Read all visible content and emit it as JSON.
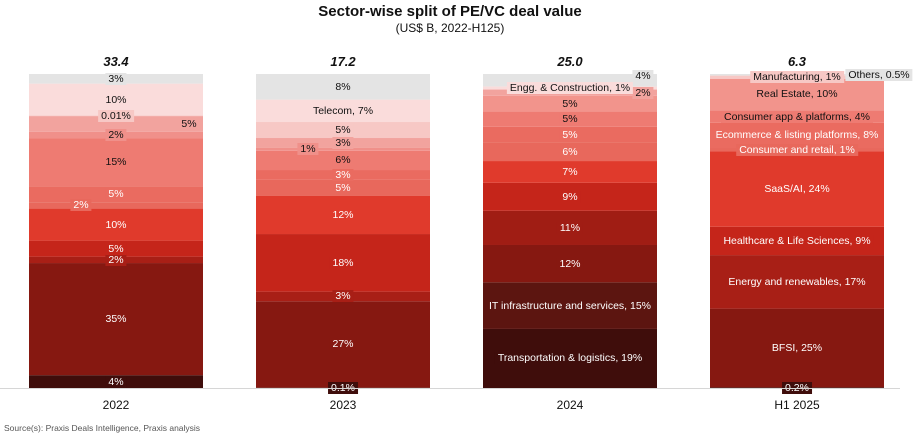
{
  "chart_data": {
    "type": "bar",
    "stacked": "100%",
    "title": "Sector-wise split of PE/VC deal value",
    "subtitle": "(US$ B, 2022-H125)",
    "source": "Source(s): Praxis Deals Intelligence, Praxis analysis",
    "categories": [
      "2022",
      "2023",
      "2024",
      "H1 2025"
    ],
    "totals": [
      "33.4",
      "17.2",
      "25.0",
      "6.3"
    ],
    "grid": false,
    "bars": [
      {
        "category": "2022",
        "segments": [
          {
            "value": 4,
            "label": "4%",
            "color": "#3f0d0b"
          },
          {
            "value": 35,
            "label": "35%",
            "color": "#861811"
          },
          {
            "value": 2,
            "label": "2%",
            "color": "#a81f16"
          },
          {
            "value": 5,
            "label": "5%",
            "color": "#c5251a"
          },
          {
            "value": 10,
            "label": "10%",
            "color": "#e03a2c"
          },
          {
            "value": 2,
            "label": "2%",
            "color": "#e8685c",
            "callout": "left"
          },
          {
            "value": 5,
            "label": "5%",
            "color": "#ea6b60"
          },
          {
            "value": 15,
            "label": "15%",
            "color": "#ee7b72"
          },
          {
            "value": 2,
            "label": "2%",
            "color": "#f0908a"
          },
          {
            "value": 5,
            "label": "5%",
            "color": "#f2a39e",
            "callout": "right"
          },
          {
            "value": 0.01,
            "label": "0.01%",
            "color": "#f7c8c5"
          },
          {
            "value": 10,
            "label": "10%",
            "color": "#fadcdb"
          },
          {
            "value": 3,
            "label": "3%",
            "color": "#e4e4e4"
          }
        ]
      },
      {
        "category": "2023",
        "segments": [
          {
            "value": 0.1,
            "label": "0.1%",
            "color": "#3f0d0b"
          },
          {
            "value": 27,
            "label": "27%",
            "color": "#861811"
          },
          {
            "value": 3,
            "label": "3%",
            "color": "#a81f16"
          },
          {
            "value": 18,
            "label": "18%",
            "color": "#c5251a"
          },
          {
            "value": 12,
            "label": "12%",
            "color": "#e03a2c"
          },
          {
            "value": 5,
            "label": "5%",
            "color": "#e8685c"
          },
          {
            "value": 3,
            "label": "3%",
            "color": "#ea6b60"
          },
          {
            "value": 6,
            "label": "6%",
            "color": "#ee7b72"
          },
          {
            "value": 1,
            "label": "1%",
            "color": "#f0908a",
            "callout": "left"
          },
          {
            "value": 3,
            "label": "3%",
            "color": "#f2a39e"
          },
          {
            "value": 5,
            "label": "5%",
            "color": "#f7c8c5"
          },
          {
            "value": 7,
            "label": "Telecom, 7%",
            "color": "#fadcdb"
          },
          {
            "value": 8,
            "label": "8%",
            "color": "#e4e4e4"
          }
        ]
      },
      {
        "category": "2024",
        "segments": [
          {
            "value": 19,
            "label": "Transportation & logistics, 19%",
            "color": "#3f0d0b"
          },
          {
            "value": 15,
            "label": "IT infrastructure and services, 15%",
            "color": "#5c1510"
          },
          {
            "value": 12,
            "label": "12%",
            "color": "#861811"
          },
          {
            "value": 11,
            "label": "11%",
            "color": "#a01d14"
          },
          {
            "value": 9,
            "label": "9%",
            "color": "#c5251a"
          },
          {
            "value": 7,
            "label": "7%",
            "color": "#e03a2c"
          },
          {
            "value": 6,
            "label": "6%",
            "color": "#e8685c"
          },
          {
            "value": 5,
            "label": "5%",
            "color": "#ea6b60"
          },
          {
            "value": 5,
            "label": "5%",
            "color": "#ee7b72"
          },
          {
            "value": 5,
            "label": "5%",
            "color": "#f2948c"
          },
          {
            "value": 2,
            "label": "2%",
            "color": "#f2a39e",
            "callout": "right"
          },
          {
            "value": 1,
            "label": "Engg. & Construction, 1%",
            "color": "#fadcdb"
          },
          {
            "value": 4,
            "label": "4%",
            "color": "#e4e4e4",
            "callout": "right"
          }
        ]
      },
      {
        "category": "H1 2025",
        "segments": [
          {
            "value": 0.2,
            "label": "0.2%",
            "color": "#3f0d0b"
          },
          {
            "value": 25,
            "label": "BFSI, 25%",
            "color": "#861811"
          },
          {
            "value": 17,
            "label": "Energy and renewables, 17%",
            "color": "#a81f16"
          },
          {
            "value": 9,
            "label": "Healthcare & Life Sciences, 9%",
            "color": "#c5251a"
          },
          {
            "value": 24,
            "label": "SaaS/AI, 24%",
            "color": "#e03a2c"
          },
          {
            "value": 1,
            "label": "Consumer and retail, 1%",
            "color": "#e8685c"
          },
          {
            "value": 8,
            "label": "Ecommerce & listing platforms, 8%",
            "color": "#ea6b60"
          },
          {
            "value": 4,
            "label": "Consumer app & platforms, 4%",
            "color": "#ee7b72"
          },
          {
            "value": 10,
            "label": "Real Estate, 10%",
            "color": "#f2948c"
          },
          {
            "value": 1,
            "label": "Manufacturing, 1%",
            "color": "#f7c8c5"
          },
          {
            "value": 0.5,
            "label": "Others, 0.5%",
            "color": "#e4e4e4",
            "callout": "right"
          }
        ]
      }
    ]
  }
}
